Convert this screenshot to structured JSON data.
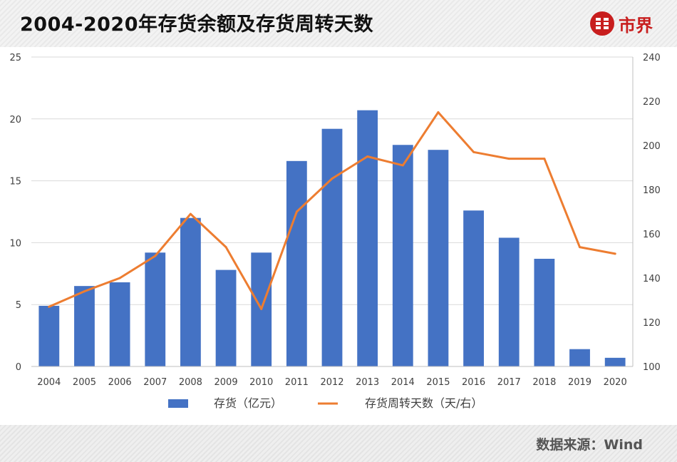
{
  "header": {
    "title": "2004-2020年存货余额及存货周转天数",
    "brand_name": "市界"
  },
  "footer": {
    "source": "数据来源：Wind"
  },
  "colors": {
    "bar": "#4472c4",
    "line": "#ed7d31",
    "brand": "#c81e1e"
  },
  "chart_data": {
    "type": "bar",
    "title": "2004-2020年存货余额及存货周转天数",
    "categories": [
      "2004",
      "2005",
      "2006",
      "2007",
      "2008",
      "2009",
      "2010",
      "2011",
      "2012",
      "2013",
      "2014",
      "2015",
      "2016",
      "2017",
      "2018",
      "2019",
      "2020"
    ],
    "series": [
      {
        "name": "存货（亿元）",
        "type": "bar",
        "axis": "left",
        "values": [
          4.9,
          6.5,
          6.8,
          9.2,
          12.0,
          7.8,
          9.2,
          16.6,
          19.2,
          20.7,
          17.9,
          17.5,
          12.6,
          10.4,
          8.7,
          1.4,
          0.7
        ]
      },
      {
        "name": "存货周转天数（天/右）",
        "type": "line",
        "axis": "right",
        "values": [
          127,
          134,
          140,
          150,
          169,
          154,
          126,
          170,
          185,
          195,
          191,
          215,
          197,
          194,
          194,
          154,
          151
        ]
      }
    ],
    "y_left": {
      "min": 0,
      "max": 25,
      "ticks": [
        0,
        5,
        10,
        15,
        20,
        25
      ]
    },
    "y_right": {
      "min": 100,
      "max": 240,
      "ticks": [
        100,
        120,
        140,
        160,
        180,
        200,
        220,
        240
      ]
    },
    "legend": [
      "存货（亿元）",
      "存货周转天数（天/右）"
    ],
    "legend_position": "bottom",
    "grid": true
  }
}
